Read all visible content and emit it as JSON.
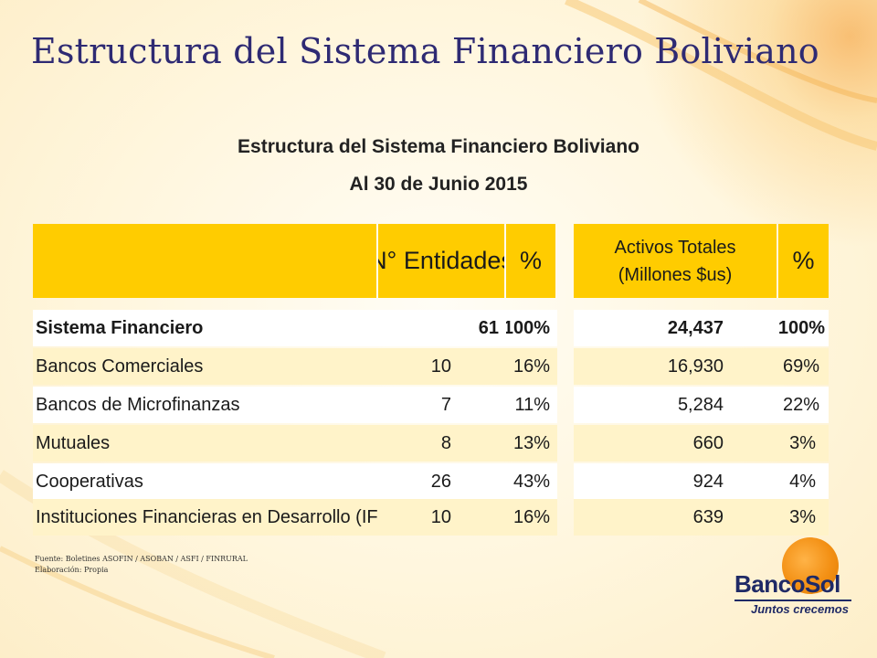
{
  "slide": {
    "title": "Estructura del Sistema Financiero Boliviano"
  },
  "table": {
    "title": "Estructura del Sistema Financiero Boliviano",
    "subtitle": "Al 30 de Junio 2015",
    "headers": {
      "entidades": "N° Entidades",
      "pct1": "%",
      "activos_line1": "Activos Totales",
      "activos_line2": "(Millones $us)",
      "pct2": "%"
    },
    "rows": [
      {
        "label": "Sistema Financiero",
        "entidades": "61",
        "pct1": "100%",
        "activos": "24,437",
        "pct2": "100%"
      },
      {
        "label": "Bancos Comerciales",
        "entidades": "10",
        "pct1": "16%",
        "activos": "16,930",
        "pct2": "69%"
      },
      {
        "label": "Bancos de Microfinanzas",
        "entidades": "7",
        "pct1": "11%",
        "activos": "5,284",
        "pct2": "22%"
      },
      {
        "label": "Mutuales",
        "entidades": "8",
        "pct1": "13%",
        "activos": "660",
        "pct2": "3%"
      },
      {
        "label": "Cooperativas",
        "entidades": "26",
        "pct1": "43%",
        "activos": "924",
        "pct2": "4%"
      },
      {
        "label": "Instituciones Financieras en Desarrollo (IFDs)",
        "entidades": "10",
        "pct1": "16%",
        "activos": "639",
        "pct2": "3%"
      }
    ]
  },
  "footnotes": {
    "fuente": "Fuente: Boletines ASOFIN / ASOBAN / ASFI / FINRURAL",
    "elaboracion": "Elaboración: Propia"
  },
  "logo": {
    "name": "BancoSol",
    "tagline": "Juntos crecemos"
  },
  "colors": {
    "header": "#ffcc00",
    "row_alt": "#fff3c9",
    "title": "#2e2a73",
    "logo_orange": "#f39014",
    "logo_navy": "#1f2a66"
  }
}
